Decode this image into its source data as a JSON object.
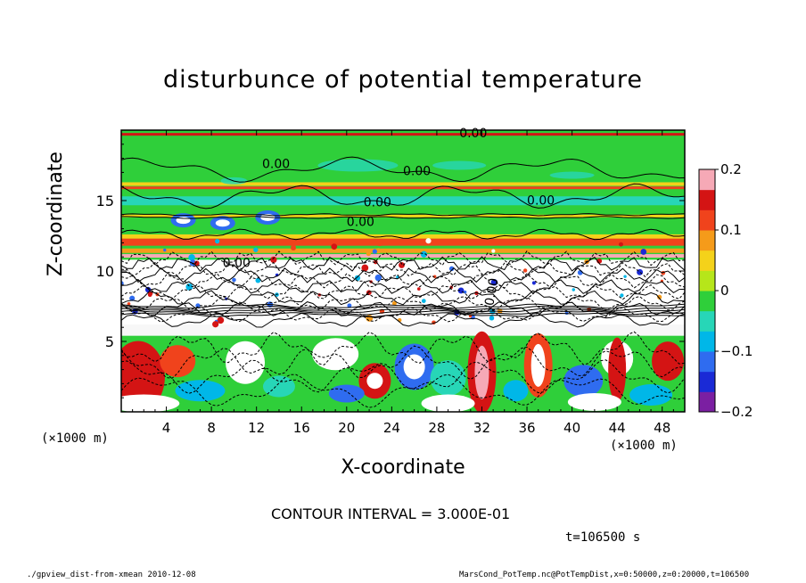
{
  "title": "disturbunce of potential temperature",
  "xlabel": "X-coordinate",
  "ylabel": "Z-coordinate",
  "x_unit_left": "(×1000 m)",
  "x_unit_right": "(×1000 m)",
  "contour_interval": "CONTOUR INTERVAL = 3.000E-01",
  "time_label": "t=106500 s",
  "footer_left": "./gpview_dist-from-xmean  2010-12-08",
  "footer_right": "MarsCond_PotTemp.nc@PotTempDist,x=0:50000,z=0:20000,t=106500",
  "chart_data": {
    "type": "heatmap",
    "title": "disturbunce of potential temperature",
    "xlabel": "X-coordinate",
    "ylabel": "Z-coordinate",
    "xlim": [
      0,
      50
    ],
    "ylim": [
      0,
      20
    ],
    "x_ticks": [
      4,
      8,
      12,
      16,
      20,
      24,
      28,
      32,
      36,
      40,
      44,
      48
    ],
    "y_ticks": [
      5,
      10,
      15
    ],
    "colorbar": {
      "min": -0.2,
      "max": 0.2,
      "ticks": [
        -0.2,
        -0.1,
        0,
        0.1,
        0.2
      ],
      "tick_labels": [
        "−0.2",
        "−0.1",
        "0",
        "0.1",
        "0.2"
      ],
      "colors": [
        "#7b1fa2",
        "#1a2ad6",
        "#2f6cf0",
        "#00b7e8",
        "#27d6b7",
        "#2fcf3a",
        "#b6e61a",
        "#f4d21a",
        "#f59b1a",
        "#f0431c",
        "#d41414",
        "#f6a9b6"
      ]
    },
    "contour_labels": [
      "0.00",
      "0.00",
      "0.00",
      "0.00",
      "0.00",
      "0.00",
      "0.00",
      "0.00"
    ],
    "contour_interval": 0.3,
    "time_s": 106500
  }
}
